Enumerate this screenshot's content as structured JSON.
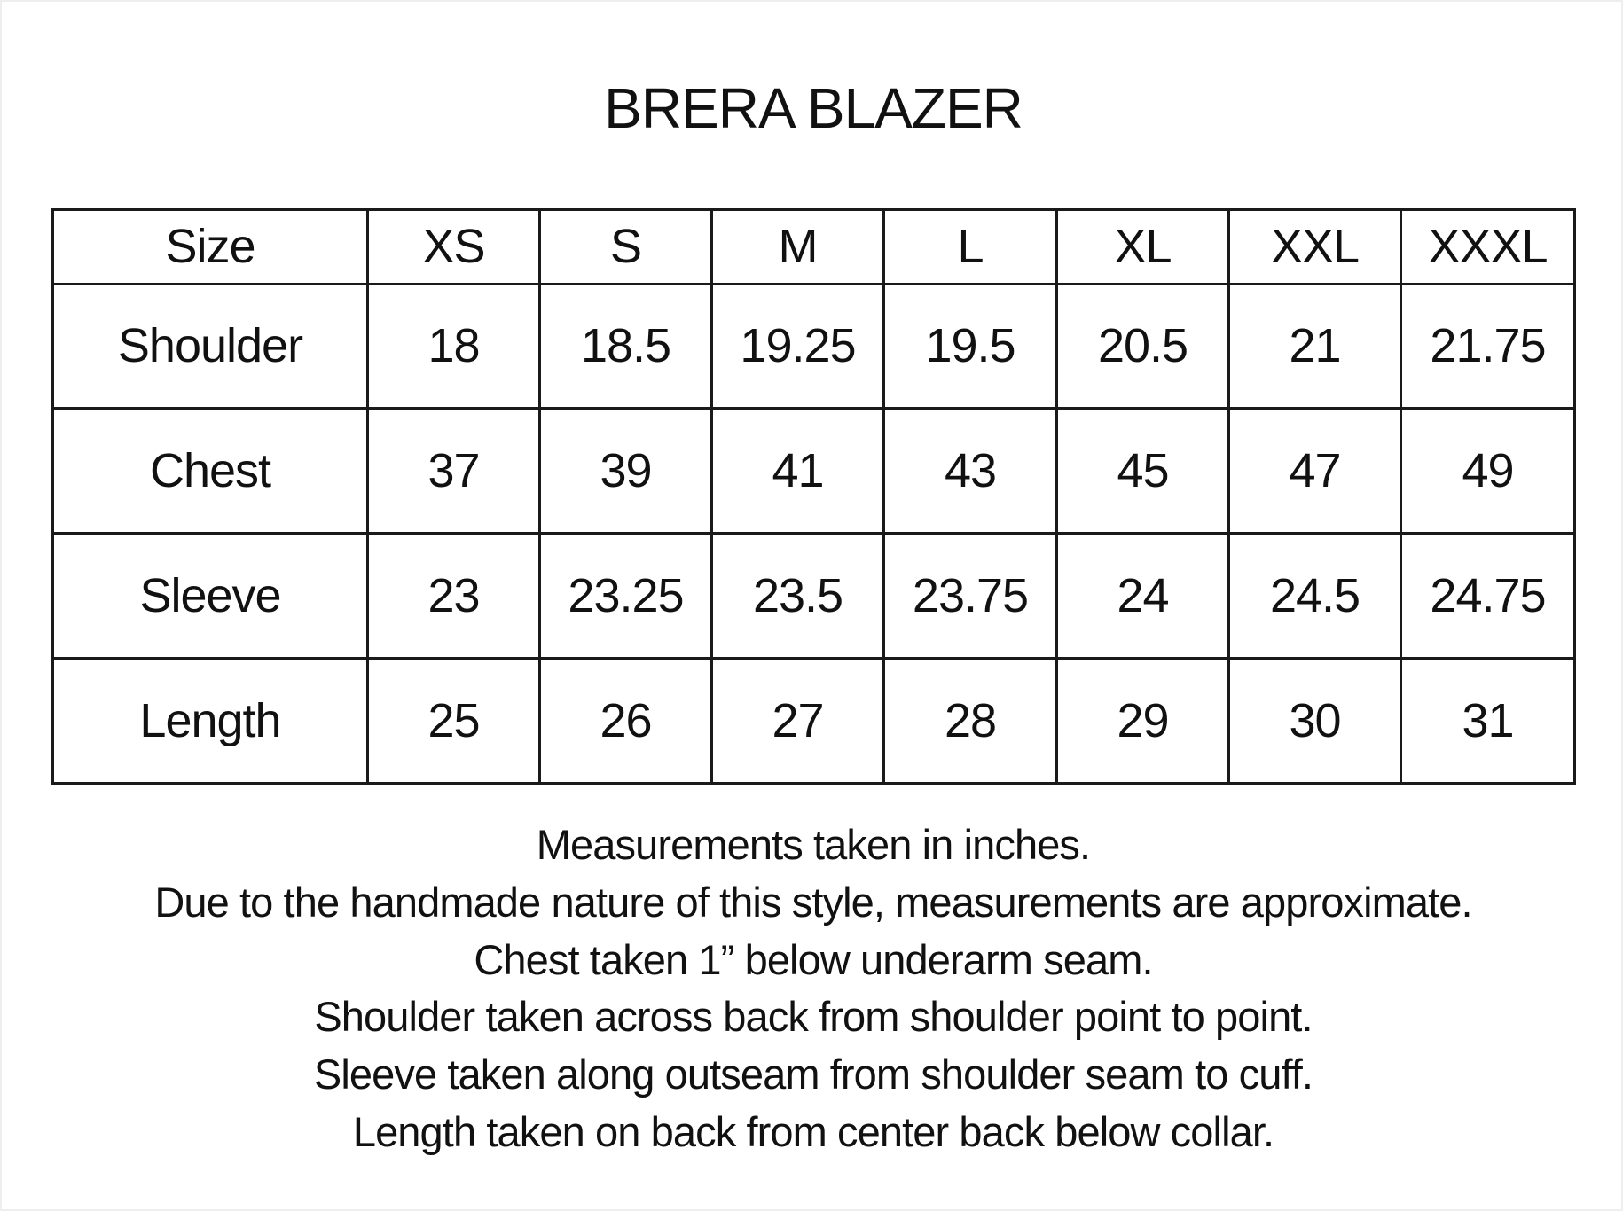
{
  "title": "BRERA BLAZER",
  "table": {
    "header": [
      "Size",
      "XS",
      "S",
      "M",
      "L",
      "XL",
      "XXL",
      "XXXL"
    ],
    "rows": [
      [
        "Shoulder",
        "18",
        "18.5",
        "19.25",
        "19.5",
        "20.5",
        "21",
        "21.75"
      ],
      [
        "Chest",
        "37",
        "39",
        "41",
        "43",
        "45",
        "47",
        "49"
      ],
      [
        "Sleeve",
        "23",
        "23.25",
        "23.5",
        "23.75",
        "24",
        "24.5",
        "24.75"
      ],
      [
        "Length",
        "25",
        "26",
        "27",
        "28",
        "29",
        "30",
        "31"
      ]
    ]
  },
  "notes": [
    "Measurements taken in inches.",
    "Due to the handmade nature of this style, measurements are approximate.",
    "Chest taken 1” below underarm seam.",
    "Shoulder taken across back from shoulder point to point.",
    "Sleeve taken along outseam from shoulder seam to cuff.",
    "Length taken on back from center back below collar."
  ]
}
